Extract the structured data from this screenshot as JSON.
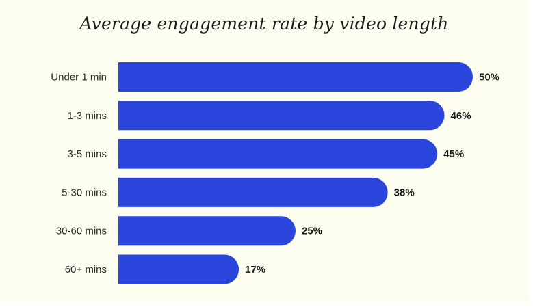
{
  "chart_data": {
    "type": "bar",
    "orientation": "horizontal",
    "title": "Average engagement rate by video length",
    "categories": [
      "Under 1 min",
      "1-3 mins",
      "3-5 mins",
      "5-30 mins",
      "30-60 mins",
      "60+ mins"
    ],
    "values": [
      50,
      46,
      45,
      38,
      25,
      17
    ],
    "value_labels": [
      "50%",
      "46%",
      "45%",
      "38%",
      "25%",
      "17%"
    ],
    "unit": "%",
    "xlim": [
      0,
      50
    ],
    "grid": false,
    "legend": "none",
    "colors": {
      "bar": "#2a46dc",
      "background": "#fdfdf0",
      "text": "#1a1a1a"
    }
  }
}
